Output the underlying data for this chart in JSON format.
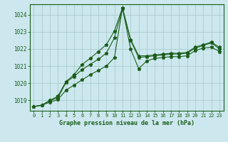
{
  "xlabel_label": "Graphe pression niveau de la mer (hPa)",
  "xlim": [
    -0.5,
    23.5
  ],
  "ylim": [
    1018.4,
    1024.6
  ],
  "yticks": [
    1019,
    1020,
    1021,
    1022,
    1023,
    1024
  ],
  "xticks": [
    0,
    1,
    2,
    3,
    4,
    5,
    6,
    7,
    8,
    9,
    10,
    11,
    12,
    13,
    14,
    15,
    16,
    17,
    18,
    19,
    20,
    21,
    22,
    23
  ],
  "background_color": "#cce8ee",
  "grid_color": "#aacccc",
  "line_color": "#1a5c1a",
  "line1_x": [
    0,
    1,
    2,
    3,
    4,
    5,
    6,
    7,
    8,
    9,
    10,
    11,
    12,
    13,
    14,
    15,
    16,
    17,
    18,
    19,
    20,
    21,
    22,
    23
  ],
  "line1": [
    1018.65,
    1018.72,
    1019.0,
    1019.15,
    1020.05,
    1020.4,
    1020.8,
    1021.1,
    1021.4,
    1021.75,
    1022.65,
    1024.35,
    1022.5,
    1021.5,
    1021.55,
    1021.6,
    1021.65,
    1021.7,
    1021.7,
    1021.75,
    1022.05,
    1022.2,
    1022.35,
    1022.0
  ],
  "line2_x": [
    0,
    1,
    2,
    3,
    4,
    5,
    6,
    7,
    8,
    9,
    10,
    11,
    12,
    13,
    14,
    15,
    16,
    17,
    18,
    19,
    20,
    21,
    22,
    23
  ],
  "line2": [
    1018.65,
    1018.72,
    1019.0,
    1019.25,
    1020.1,
    1020.5,
    1021.1,
    1021.45,
    1021.85,
    1022.25,
    1023.05,
    1024.4,
    1022.55,
    1021.6,
    1021.6,
    1021.65,
    1021.7,
    1021.75,
    1021.75,
    1021.8,
    1022.1,
    1022.25,
    1022.4,
    1022.1
  ],
  "line3_x": [
    0,
    1,
    2,
    3,
    4,
    5,
    6,
    7,
    8,
    9,
    10,
    11,
    12,
    13,
    14,
    15,
    16,
    17,
    18,
    19,
    20,
    21,
    22,
    23
  ],
  "line3": [
    1018.65,
    1018.72,
    1018.9,
    1019.05,
    1019.6,
    1019.9,
    1020.2,
    1020.5,
    1020.75,
    1021.0,
    1021.5,
    1024.4,
    1022.0,
    1020.85,
    1021.3,
    1021.45,
    1021.5,
    1021.55,
    1021.55,
    1021.6,
    1021.9,
    1022.05,
    1022.1,
    1021.85
  ]
}
